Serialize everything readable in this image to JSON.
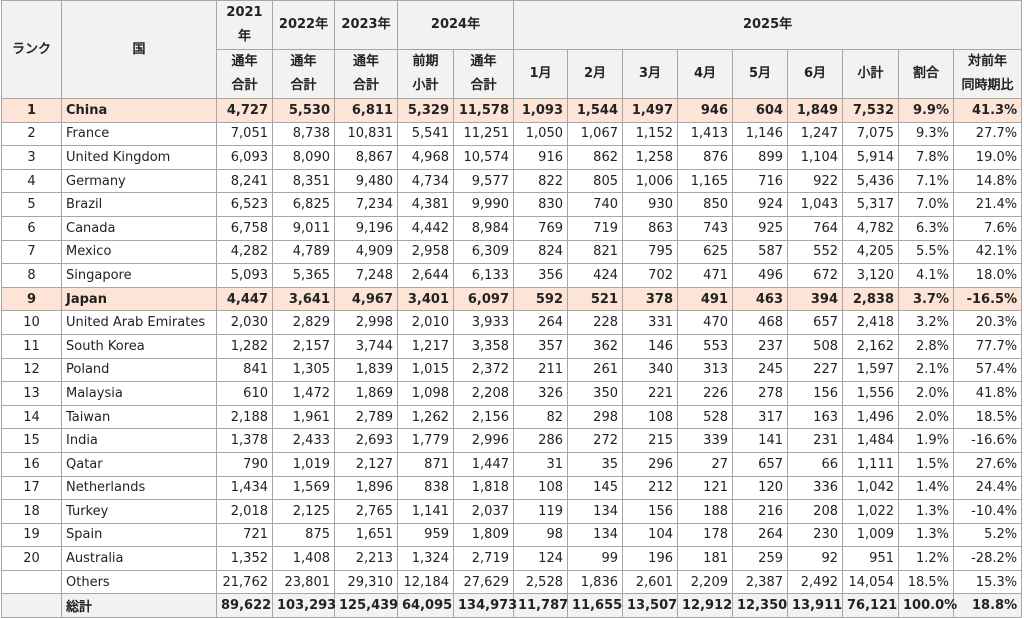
{
  "table": {
    "header": {
      "top": [
        "ランク",
        "国",
        "2021年",
        "2022年",
        "2023年",
        "2024年",
        "2025年"
      ],
      "sub": [
        "通年\n合計",
        "通年\n合計",
        "通年\n合計",
        "前期\n小計",
        "通年\n合計",
        "1月",
        "2月",
        "3月",
        "4月",
        "5月",
        "6月",
        "小計",
        "割合",
        "対前年\n同時期比"
      ]
    },
    "highlight_color": "#fce4d6",
    "rows": [
      {
        "rank": "1",
        "country": "China",
        "highlighted": true,
        "cells": [
          "4,727",
          "5,530",
          "6,811",
          "5,329",
          "11,578",
          "1,093",
          "1,544",
          "1,497",
          "946",
          "604",
          "1,849",
          "7,532",
          "9.9%",
          "41.3%"
        ]
      },
      {
        "rank": "2",
        "country": "France",
        "cells": [
          "7,051",
          "8,738",
          "10,831",
          "5,541",
          "11,251",
          "1,050",
          "1,067",
          "1,152",
          "1,413",
          "1,146",
          "1,247",
          "7,075",
          "9.3%",
          "27.7%"
        ]
      },
      {
        "rank": "3",
        "country": "United Kingdom",
        "cells": [
          "6,093",
          "8,090",
          "8,867",
          "4,968",
          "10,574",
          "916",
          "862",
          "1,258",
          "876",
          "899",
          "1,104",
          "5,914",
          "7.8%",
          "19.0%"
        ]
      },
      {
        "rank": "4",
        "country": "Germany",
        "cells": [
          "8,241",
          "8,351",
          "9,480",
          "4,734",
          "9,577",
          "822",
          "805",
          "1,006",
          "1,165",
          "716",
          "922",
          "5,436",
          "7.1%",
          "14.8%"
        ]
      },
      {
        "rank": "5",
        "country": "Brazil",
        "cells": [
          "6,523",
          "6,825",
          "7,234",
          "4,381",
          "9,990",
          "830",
          "740",
          "930",
          "850",
          "924",
          "1,043",
          "5,317",
          "7.0%",
          "21.4%"
        ]
      },
      {
        "rank": "6",
        "country": "Canada",
        "cells": [
          "6,758",
          "9,011",
          "9,196",
          "4,442",
          "8,984",
          "769",
          "719",
          "863",
          "743",
          "925",
          "764",
          "4,782",
          "6.3%",
          "7.6%"
        ]
      },
      {
        "rank": "7",
        "country": "Mexico",
        "cells": [
          "4,282",
          "4,789",
          "4,909",
          "2,958",
          "6,309",
          "824",
          "821",
          "795",
          "625",
          "587",
          "552",
          "4,205",
          "5.5%",
          "42.1%"
        ]
      },
      {
        "rank": "8",
        "country": "Singapore",
        "cells": [
          "5,093",
          "5,365",
          "7,248",
          "2,644",
          "6,133",
          "356",
          "424",
          "702",
          "471",
          "496",
          "672",
          "3,120",
          "4.1%",
          "18.0%"
        ]
      },
      {
        "rank": "9",
        "country": "Japan",
        "highlighted": true,
        "cells": [
          "4,447",
          "3,641",
          "4,967",
          "3,401",
          "6,097",
          "592",
          "521",
          "378",
          "491",
          "463",
          "394",
          "2,838",
          "3.7%",
          "-16.5%"
        ]
      },
      {
        "rank": "10",
        "country": "United Arab Emirates",
        "cells": [
          "2,030",
          "2,829",
          "2,998",
          "2,010",
          "3,933",
          "264",
          "228",
          "331",
          "470",
          "468",
          "657",
          "2,418",
          "3.2%",
          "20.3%"
        ]
      },
      {
        "rank": "11",
        "country": "South Korea",
        "cells": [
          "1,282",
          "2,157",
          "3,744",
          "1,217",
          "3,358",
          "357",
          "362",
          "146",
          "553",
          "237",
          "508",
          "2,162",
          "2.8%",
          "77.7%"
        ]
      },
      {
        "rank": "12",
        "country": "Poland",
        "cells": [
          "841",
          "1,305",
          "1,839",
          "1,015",
          "2,372",
          "211",
          "261",
          "340",
          "313",
          "245",
          "227",
          "1,597",
          "2.1%",
          "57.4%"
        ]
      },
      {
        "rank": "13",
        "country": "Malaysia",
        "cells": [
          "610",
          "1,472",
          "1,869",
          "1,098",
          "2,208",
          "326",
          "350",
          "221",
          "226",
          "278",
          "156",
          "1,556",
          "2.0%",
          "41.8%"
        ]
      },
      {
        "rank": "14",
        "country": "Taiwan",
        "cells": [
          "2,188",
          "1,961",
          "2,789",
          "1,262",
          "2,156",
          "82",
          "298",
          "108",
          "528",
          "317",
          "163",
          "1,496",
          "2.0%",
          "18.5%"
        ]
      },
      {
        "rank": "15",
        "country": "India",
        "cells": [
          "1,378",
          "2,433",
          "2,693",
          "1,779",
          "2,996",
          "286",
          "272",
          "215",
          "339",
          "141",
          "231",
          "1,484",
          "1.9%",
          "-16.6%"
        ]
      },
      {
        "rank": "16",
        "country": "Qatar",
        "cells": [
          "790",
          "1,019",
          "2,127",
          "871",
          "1,447",
          "31",
          "35",
          "296",
          "27",
          "657",
          "66",
          "1,111",
          "1.5%",
          "27.6%"
        ]
      },
      {
        "rank": "17",
        "country": "Netherlands",
        "cells": [
          "1,434",
          "1,569",
          "1,896",
          "838",
          "1,818",
          "108",
          "145",
          "212",
          "121",
          "120",
          "336",
          "1,042",
          "1.4%",
          "24.4%"
        ]
      },
      {
        "rank": "18",
        "country": "Turkey",
        "cells": [
          "2,018",
          "2,125",
          "2,765",
          "1,141",
          "2,037",
          "119",
          "134",
          "156",
          "188",
          "216",
          "208",
          "1,022",
          "1.3%",
          "-10.4%"
        ]
      },
      {
        "rank": "19",
        "country": "Spain",
        "cells": [
          "721",
          "875",
          "1,651",
          "959",
          "1,809",
          "98",
          "134",
          "104",
          "178",
          "264",
          "230",
          "1,009",
          "1.3%",
          "5.2%"
        ]
      },
      {
        "rank": "20",
        "country": "Australia",
        "cells": [
          "1,352",
          "1,408",
          "2,213",
          "1,324",
          "2,719",
          "124",
          "99",
          "196",
          "181",
          "259",
          "92",
          "951",
          "1.2%",
          "-28.2%"
        ]
      },
      {
        "country": "Others",
        "cells": [
          "21,762",
          "23,801",
          "29,310",
          "12,184",
          "27,629",
          "2,528",
          "1,836",
          "2,601",
          "2,209",
          "2,387",
          "2,492",
          "14,054",
          "18.5%",
          "15.3%"
        ]
      },
      {
        "country": "総計",
        "total": true,
        "cells": [
          "89,622",
          "103,293",
          "125,439",
          "64,095",
          "134,973",
          "11,787",
          "11,655",
          "13,507",
          "12,912",
          "12,350",
          "13,911",
          "76,121",
          "100.0%",
          "18.8%"
        ]
      }
    ]
  }
}
